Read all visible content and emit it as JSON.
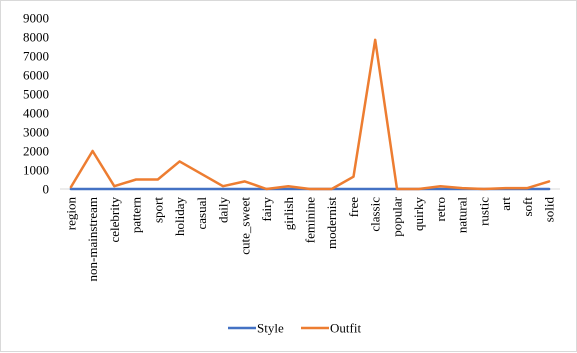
{
  "chart_data": {
    "type": "line",
    "title": "",
    "xlabel": "",
    "ylabel": "",
    "ylim": [
      0,
      9000
    ],
    "yticks": [
      0,
      1000,
      2000,
      3000,
      4000,
      5000,
      6000,
      7000,
      8000,
      9000
    ],
    "grid": false,
    "legend_position": "bottom",
    "categories": [
      "region",
      "non-mainstream",
      "celebrity",
      "pattern",
      "sport",
      "holiday",
      "casual",
      "daily",
      "cute_sweet",
      "fairy",
      "girlish",
      "feminine",
      "modernist",
      "free",
      "classic",
      "popular",
      "quirky",
      "retro",
      "natural",
      "rustic",
      "art",
      "soft",
      "solid"
    ],
    "series": [
      {
        "name": "Style",
        "color": "#4472C4",
        "values": [
          0,
          0,
          0,
          0,
          0,
          0,
          0,
          0,
          0,
          0,
          0,
          0,
          0,
          0,
          0,
          0,
          0,
          0,
          0,
          0,
          0,
          0,
          0
        ]
      },
      {
        "name": "Outfit",
        "color": "#ED7D31",
        "values": [
          100,
          2000,
          150,
          500,
          500,
          1450,
          800,
          150,
          400,
          0,
          150,
          0,
          0,
          650,
          7850,
          0,
          0,
          150,
          50,
          0,
          50,
          50,
          400
        ]
      }
    ]
  }
}
